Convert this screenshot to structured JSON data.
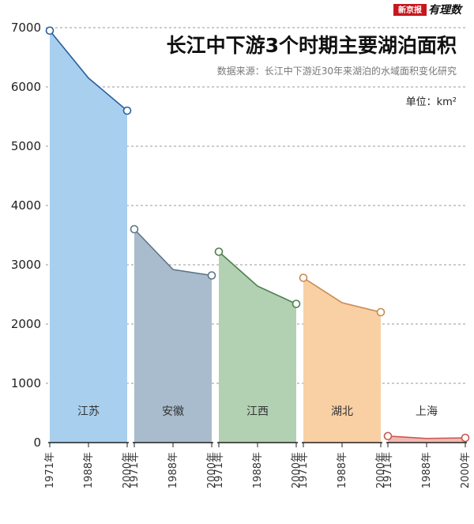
{
  "brand": {
    "name": "新京报",
    "column": "有理数"
  },
  "chart_data": {
    "type": "area",
    "title": "长江中下游3个时期主要湖泊面积",
    "subtitle": "数据来源：长江中下游近30年来湖泊的水域面积变化研究",
    "unit": "单位：km²",
    "ylim": [
      0,
      7000
    ],
    "yticks": [
      0,
      1000,
      2000,
      3000,
      4000,
      5000,
      6000,
      7000
    ],
    "grid": true,
    "x": [
      "1971年",
      "1988年",
      "2000年"
    ],
    "series": [
      {
        "name": "江苏",
        "values": [
          6950,
          6150,
          5600
        ],
        "color": "#a8cfee",
        "line": "#2a5f9e"
      },
      {
        "name": "安徽",
        "values": [
          3600,
          2920,
          2820
        ],
        "color": "#a9bccd",
        "line": "#5d7588"
      },
      {
        "name": "江西",
        "values": [
          3220,
          2640,
          2340
        ],
        "color": "#b2d0b2",
        "line": "#4d7f4d"
      },
      {
        "name": "湖北",
        "values": [
          2780,
          2360,
          2200
        ],
        "color": "#f9cfa4",
        "line": "#c88a4f"
      },
      {
        "name": "上海",
        "values": [
          110,
          70,
          80
        ],
        "color": "#f0b9b2",
        "line": "#c9574d"
      }
    ]
  }
}
